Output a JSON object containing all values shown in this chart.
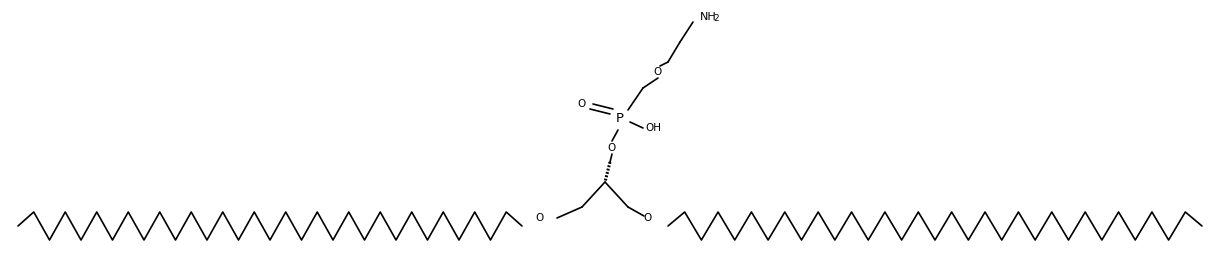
{
  "figure_width": 12.2,
  "figure_height": 2.58,
  "dpi": 100,
  "background_color": "#ffffff",
  "line_color": "#000000",
  "line_width": 1.2,
  "text_color": "#000000",
  "font_size": 7.5,
  "NH2_label": "NH",
  "NH2_sub": "2",
  "O_label": "O",
  "P_label": "P",
  "OH_label": "OH",
  "dbl_O_label": "O"
}
